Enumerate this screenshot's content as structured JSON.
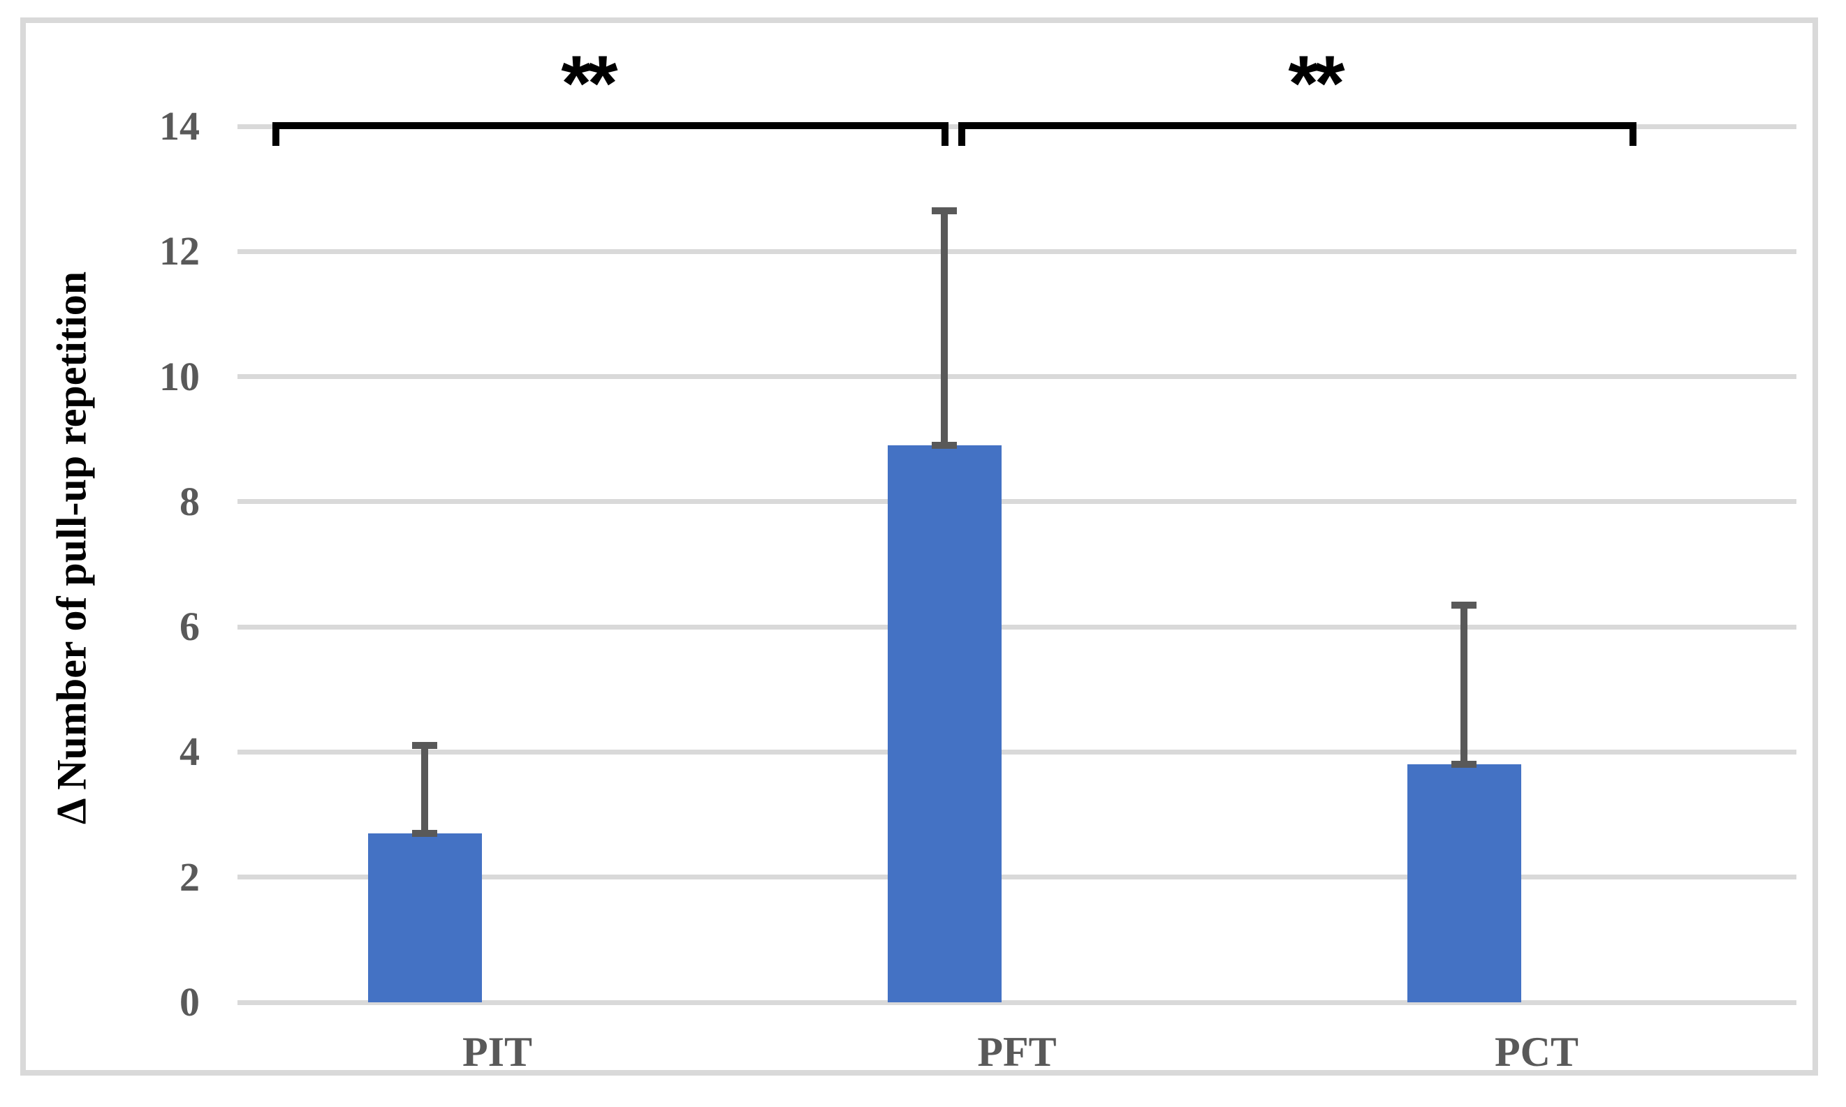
{
  "chart_data": {
    "type": "bar",
    "title": "",
    "categories": [
      "PIT",
      "PFT",
      "PCT"
    ],
    "values": [
      2.7,
      8.9,
      3.8
    ],
    "error_upper": [
      1.4,
      3.75,
      2.55
    ],
    "xlabel": "",
    "ylabel": "Δ Number of pull-up repetition",
    "ylim": [
      0,
      14
    ],
    "yticks": [
      0,
      2,
      4,
      6,
      8,
      10,
      12,
      14
    ],
    "grid": true,
    "legend": false,
    "significance": [
      {
        "groups": [
          "PIT",
          "PFT"
        ],
        "label": "**"
      },
      {
        "groups": [
          "PFT",
          "PCT"
        ],
        "label": "**"
      }
    ],
    "colors": {
      "bar": "#4472C4",
      "error_bar": "#595959",
      "gridline": "#D9D9D9",
      "frame": "#D9D9D9",
      "tick_text": "#595959",
      "category_text": "#595959",
      "axis_title_text": "#000000",
      "bracket": "#000000",
      "background": "#FFFFFF"
    }
  }
}
